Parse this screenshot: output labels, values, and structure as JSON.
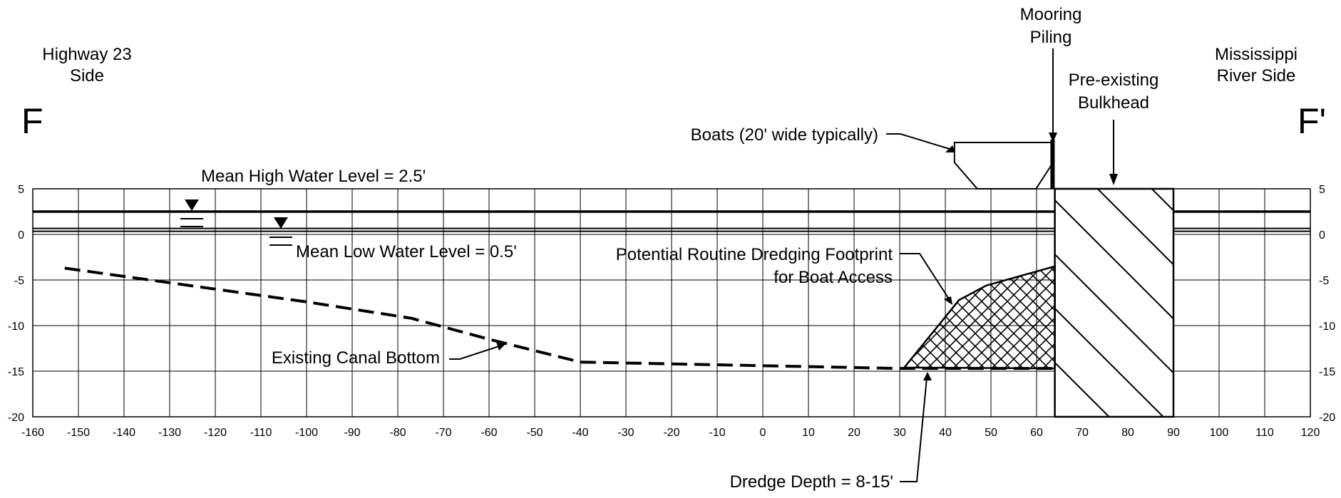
{
  "section": {
    "left_marker": "F",
    "right_marker": "F'",
    "left_side_label": [
      "Highway 23",
      "Side"
    ],
    "right_side_label": [
      "Mississippi",
      "River Side"
    ]
  },
  "labels": {
    "mooring_piling": [
      "Mooring",
      "Piling"
    ],
    "bulkhead": [
      "Pre-existing",
      "Bulkhead"
    ],
    "boats": "Boats (20' wide typically)",
    "mhw": "Mean High Water Level = 2.5'",
    "mlw": "Mean Low Water Level = 0.5'",
    "dredging": [
      "Potential Routine Dredging Footprint",
      "for Boat Access"
    ],
    "canal_bottom": "Existing Canal Bottom",
    "dredge_depth": "Dredge Depth = 8-15'"
  },
  "axes": {
    "x_ticks": [
      -160,
      -150,
      -140,
      -130,
      -120,
      -110,
      -100,
      -90,
      -80,
      -70,
      -60,
      -50,
      -40,
      -30,
      -20,
      -10,
      0,
      10,
      20,
      30,
      40,
      50,
      60,
      70,
      80,
      90,
      100,
      110,
      120
    ],
    "y_ticks": [
      5,
      0,
      -5,
      -10,
      -15,
      -20
    ],
    "x_range": [
      -160,
      120
    ],
    "y_range": [
      -20,
      5
    ]
  },
  "levels": {
    "mean_high_water": 2.5,
    "mean_low_water": 0.5
  },
  "features": {
    "canal_bottom": [
      [
        -153,
        -3.7
      ],
      [
        -120,
        -6
      ],
      [
        -100,
        -7.4
      ],
      [
        -77,
        -9.2
      ],
      [
        -60,
        -11.5
      ],
      [
        -40,
        -14
      ],
      [
        0,
        -14.4
      ],
      [
        30,
        -14.7
      ],
      [
        64,
        -14.7
      ]
    ],
    "dredge_footprint": [
      [
        31,
        -14.6
      ],
      [
        43,
        -7.2
      ],
      [
        49,
        -5.6
      ],
      [
        64,
        -3.5
      ],
      [
        64,
        -14.7
      ]
    ],
    "bulkhead_extent": [
      64,
      90
    ],
    "piling_x": 63.5,
    "boat_x": [
      42,
      63
    ]
  }
}
